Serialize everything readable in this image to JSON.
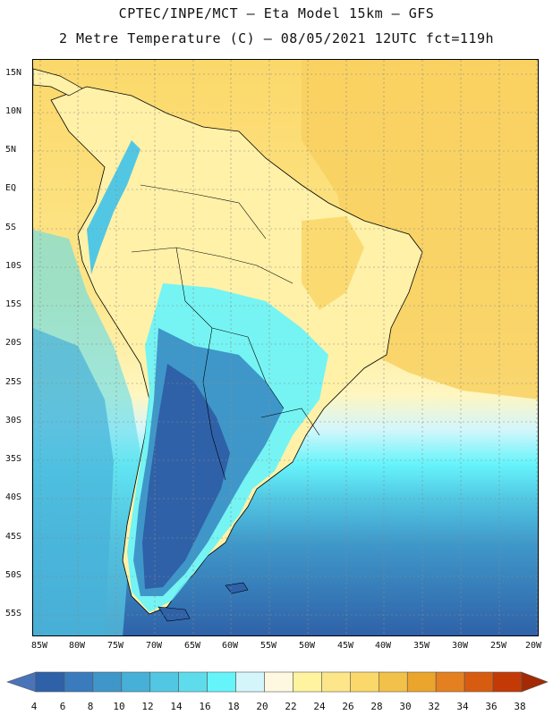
{
  "header": {
    "line1": "CPTEC/INPE/MCT –  Eta Model 15km – GFS",
    "line2": "2 Metre Temperature (C) – 08/05/2021 12UTC fct=119h"
  },
  "axes": {
    "lat_labels": [
      "15N",
      "10N",
      "5N",
      "EQ",
      "5S",
      "10S",
      "15S",
      "20S",
      "25S",
      "30S",
      "35S",
      "40S",
      "45S",
      "50S",
      "55S"
    ],
    "lon_labels": [
      "85W",
      "80W",
      "75W",
      "70W",
      "65W",
      "60W",
      "55W",
      "50W",
      "45W",
      "40W",
      "35W",
      "30W",
      "25W",
      "20W"
    ]
  },
  "legend": {
    "ticks": [
      "4",
      "6",
      "8",
      "10",
      "12",
      "14",
      "16",
      "18",
      "20",
      "22",
      "24",
      "26",
      "28",
      "30",
      "32",
      "34",
      "36",
      "38"
    ],
    "colors": [
      "#4a74b8",
      "#2f61a8",
      "#3a7bbd",
      "#3f97c9",
      "#47b0d8",
      "#52c7e3",
      "#5fdcec",
      "#66f4fb",
      "#d4f6fb",
      "#fff8e0",
      "#fff3a0",
      "#fde68a",
      "#fbd86a",
      "#f2c14a",
      "#eba52c",
      "#e58020",
      "#d85c10",
      "#c33a06",
      "#a32a04"
    ]
  }
}
